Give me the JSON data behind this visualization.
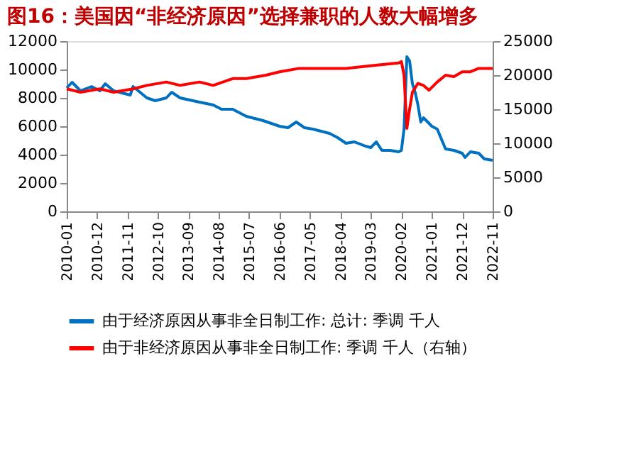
{
  "chart_data": {
    "type": "line",
    "title": "图16：美国因“非经济原因”选择兼职的人数大幅增多",
    "xlim": [
      "2010-01",
      "2022-11"
    ],
    "xticks": [
      "2010-01",
      "2010-12",
      "2011-11",
      "2012-10",
      "2013-09",
      "2014-08",
      "2015-07",
      "2016-06",
      "2017-05",
      "2018-04",
      "2019-03",
      "2020-02",
      "2021-01",
      "2021-12",
      "2022-11"
    ],
    "ylim": [
      0,
      12000
    ],
    "yticks": [
      0,
      2000,
      4000,
      6000,
      8000,
      10000,
      12000
    ],
    "y2lim": [
      0,
      25000
    ],
    "y2ticks": [
      0,
      5000,
      10000,
      15000,
      20000,
      25000
    ],
    "grid": false,
    "legend": "bottom",
    "series": [
      {
        "name": "由于经济原因从事非全日制工作: 总计: 季调  千人",
        "color": "#0070c0",
        "x": [
          "2010-01",
          "2010-03",
          "2010-06",
          "2010-10",
          "2011-01",
          "2011-03",
          "2011-06",
          "2011-12",
          "2012-01",
          "2012-06",
          "2012-09",
          "2013-01",
          "2013-03",
          "2013-06",
          "2014-01",
          "2014-06",
          "2014-09",
          "2015-01",
          "2015-06",
          "2015-12",
          "2016-06",
          "2016-09",
          "2016-12",
          "2017-03",
          "2017-06",
          "2017-12",
          "2018-03",
          "2018-06",
          "2018-09",
          "2019-01",
          "2019-03",
          "2019-05",
          "2019-07",
          "2019-10",
          "2020-01",
          "2020-02",
          "2020-03",
          "2020-04",
          "2020-05",
          "2020-06",
          "2020-07",
          "2020-08",
          "2020-09",
          "2020-10",
          "2021-01",
          "2021-03",
          "2021-06",
          "2021-09",
          "2021-12",
          "2022-01",
          "2022-03",
          "2022-06",
          "2022-08",
          "2022-11"
        ],
        "values": [
          8700,
          9100,
          8500,
          8800,
          8500,
          9000,
          8500,
          8200,
          8800,
          8000,
          7800,
          8000,
          8400,
          8000,
          7700,
          7500,
          7200,
          7200,
          6700,
          6400,
          6000,
          5900,
          6300,
          5900,
          5800,
          5500,
          5200,
          4800,
          4900,
          4600,
          4500,
          4900,
          4300,
          4300,
          4200,
          4300,
          5800,
          10900,
          10600,
          9000,
          8400,
          7500,
          6300,
          6600,
          6000,
          5800,
          4400,
          4300,
          4100,
          3800,
          4200,
          4100,
          3700,
          3600
        ]
      },
      {
        "name": "由于非经济原因从事非全日制工作: 季调  千人（右轴）",
        "color": "#ff0000",
        "axis": "y2",
        "x": [
          "2010-01",
          "2010-06",
          "2011-01",
          "2011-06",
          "2012-01",
          "2012-06",
          "2013-01",
          "2013-06",
          "2014-01",
          "2014-06",
          "2015-01",
          "2015-06",
          "2016-01",
          "2016-06",
          "2017-01",
          "2017-06",
          "2018-01",
          "2018-06",
          "2019-01",
          "2019-06",
          "2020-01",
          "2020-02",
          "2020-03",
          "2020-04",
          "2020-05",
          "2020-06",
          "2020-08",
          "2020-10",
          "2020-12",
          "2021-03",
          "2021-06",
          "2021-09",
          "2021-12",
          "2022-03",
          "2022-06",
          "2022-11"
        ],
        "values": [
          18000,
          17500,
          18000,
          17500,
          18000,
          18500,
          19000,
          18500,
          19000,
          18500,
          19500,
          19500,
          20000,
          20500,
          21000,
          21000,
          21000,
          21000,
          21300,
          21500,
          21800,
          22000,
          20000,
          12200,
          15000,
          17500,
          18800,
          18500,
          17800,
          19000,
          20000,
          19800,
          20500,
          20500,
          21000,
          21000
        ]
      }
    ]
  }
}
